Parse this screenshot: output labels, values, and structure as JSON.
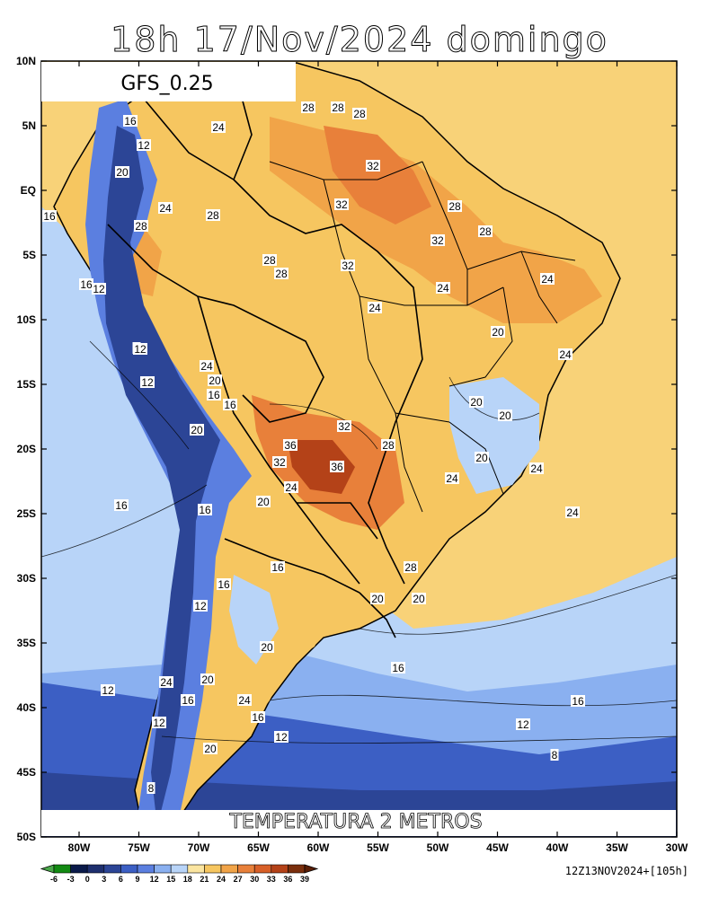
{
  "title": "18h  17/Nov/2024  domingo",
  "model_label": "GFS_0.25",
  "field_label": "TEMPERATURA  2  METROS",
  "run_info": "12Z13NOV2024+[105h]",
  "lat_labels": [
    "10N",
    "5N",
    "EQ",
    "5S",
    "10S",
    "15S",
    "20S",
    "25S",
    "30S",
    "35S",
    "40S",
    "45S",
    "50S"
  ],
  "lon_labels": [
    "80W",
    "75W",
    "70W",
    "65W",
    "60W",
    "55W",
    "50W",
    "45W",
    "40W",
    "35W",
    "30W"
  ],
  "colorbar": {
    "ticks": [
      "-6",
      "-3",
      "0",
      "3",
      "6",
      "9",
      "12",
      "15",
      "18",
      "21",
      "24",
      "27",
      "30",
      "33",
      "36",
      "39"
    ],
    "colors": [
      "#4aa84a",
      "#138a13",
      "#0a1a4a",
      "#1e2f6e",
      "#2c4596",
      "#3c5fc4",
      "#5b7fe0",
      "#8ab0f0",
      "#b8d4f8",
      "#fbe5a0",
      "#f6c660",
      "#f1a448",
      "#e8803a",
      "#d86028",
      "#b44218",
      "#7a2e0c",
      "#5a1e06"
    ]
  },
  "contour_labels": [
    "16",
    "12",
    "20",
    "24",
    "28",
    "24",
    "28",
    "28",
    "32",
    "32",
    "28",
    "32",
    "28",
    "24",
    "28",
    "28",
    "28",
    "28",
    "32",
    "24",
    "24",
    "16",
    "12",
    "8",
    "12",
    "24",
    "20",
    "12",
    "16",
    "20",
    "16",
    "32",
    "36",
    "32",
    "36",
    "28",
    "20",
    "20",
    "20",
    "24",
    "24",
    "20",
    "16",
    "16",
    "24",
    "20",
    "20",
    "16",
    "12",
    "24",
    "20",
    "16",
    "24",
    "16",
    "12",
    "20",
    "16",
    "28",
    "24",
    "20",
    "16",
    "12",
    "8",
    "12",
    "8",
    "16",
    "12",
    "16",
    "24",
    "20"
  ],
  "place_colors": {
    "ocean_north": "#f8d278",
    "ocean_south": "#2c4596"
  }
}
